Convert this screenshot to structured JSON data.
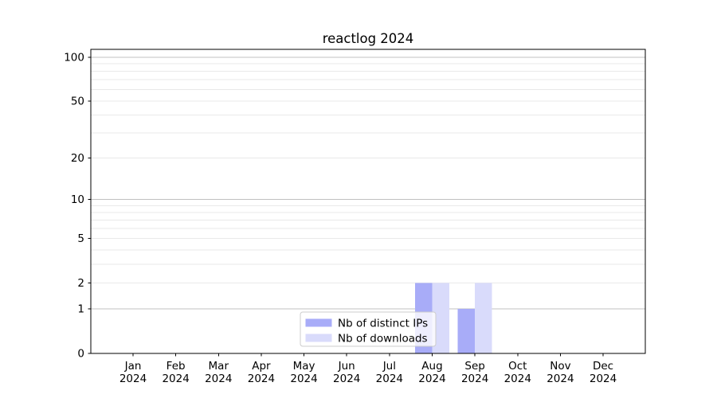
{
  "chart_data": {
    "type": "bar",
    "title": "reactlog 2024",
    "categories": [
      "Jan 2024",
      "Feb 2024",
      "Mar 2024",
      "Apr 2024",
      "May 2024",
      "Jun 2024",
      "Jul 2024",
      "Aug 2024",
      "Sep 2024",
      "Oct 2024",
      "Nov 2024",
      "Dec 2024"
    ],
    "series": [
      {
        "name": "Nb of distinct IPs",
        "color": "#a8acf8",
        "values": [
          0,
          0,
          0,
          0,
          0,
          0,
          0,
          2,
          1,
          0,
          0,
          0
        ]
      },
      {
        "name": "Nb of downloads",
        "color": "#d9dbfb",
        "values": [
          0,
          0,
          0,
          0,
          0,
          0,
          0,
          2,
          2,
          0,
          0,
          0
        ]
      }
    ],
    "xlabel": "",
    "ylabel": "",
    "yscale": "log1p",
    "ylim": [
      0,
      113
    ],
    "yticks_labeled": [
      0,
      1,
      2,
      5,
      10,
      20,
      50,
      100
    ],
    "gridlines_major": [
      1,
      10,
      100
    ],
    "gridlines_minor": [
      2,
      3,
      4,
      5,
      6,
      7,
      8,
      9,
      20,
      30,
      40,
      50,
      60,
      70,
      80,
      90
    ],
    "grid": "on",
    "legend_position": "lower center"
  },
  "palette": {
    "background": "#ffffff",
    "spine": "#000000",
    "grid_major": "#c0c0c0",
    "grid_minor": "#e9e9e9",
    "legend_border": "#cccccc",
    "legend_background_rgba": "rgba(255,255,255,0.8)"
  }
}
